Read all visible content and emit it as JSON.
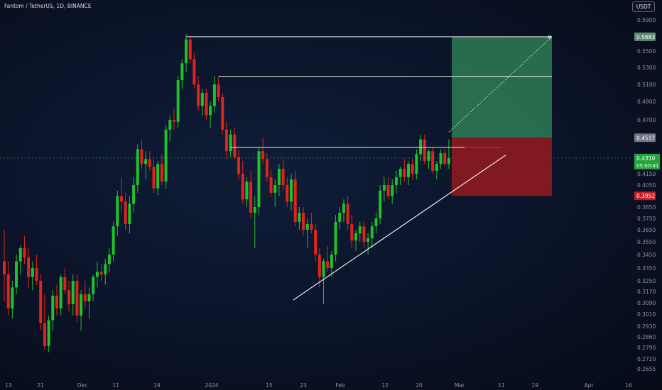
{
  "header": {
    "symbol": "Fantom / TetherUS, 1D, BINANCE",
    "currency": "USDT"
  },
  "colors": {
    "up": "#22c02a",
    "down": "#e0241a",
    "profit_zone": "#2e7d55",
    "loss_zone": "#8e1a20",
    "axis_text": "#8a93a6"
  },
  "chart_data": {
    "type": "candlestick",
    "timeframe": "1D",
    "y_ticks": [
      "0.5900",
      "0.5500",
      "0.5300",
      "0.5100",
      "0.4900",
      "0.4700",
      "0.4150",
      "0.4050",
      "0.3850",
      "0.3750",
      "0.3650",
      "0.3550",
      "0.3450",
      "0.3350",
      "0.3250",
      "0.3170",
      "0.3090",
      "0.3010",
      "0.2930",
      "0.2860",
      "0.2790",
      "0.2720",
      "0.2655"
    ],
    "x_ticks": [
      "13",
      "21",
      "Dec",
      "11",
      "19",
      "2024",
      "15",
      "23",
      "Feb",
      "12",
      "20",
      "Mar",
      "11",
      "19",
      "Apr",
      "16"
    ],
    "price_labels": {
      "target": "0.5683",
      "entry": "0.4517",
      "current": "0.4310",
      "countdown": "05:00:41",
      "stop": "0.3952"
    },
    "position": {
      "entry": 0.4517,
      "target": 0.5683,
      "stop": 0.3952
    },
    "candles": [
      [
        0.34,
        0.365,
        0.31,
        0.33
      ],
      [
        0.33,
        0.34,
        0.3,
        0.305
      ],
      [
        0.305,
        0.325,
        0.298,
        0.32
      ],
      [
        0.32,
        0.345,
        0.315,
        0.34
      ],
      [
        0.34,
        0.352,
        0.33,
        0.35
      ],
      [
        0.35,
        0.36,
        0.338,
        0.343
      ],
      [
        0.343,
        0.35,
        0.32,
        0.328
      ],
      [
        0.328,
        0.34,
        0.318,
        0.335
      ],
      [
        0.335,
        0.345,
        0.322,
        0.325
      ],
      [
        0.325,
        0.33,
        0.29,
        0.295
      ],
      [
        0.295,
        0.315,
        0.278,
        0.28
      ],
      [
        0.28,
        0.3,
        0.276,
        0.297
      ],
      [
        0.297,
        0.318,
        0.29,
        0.314
      ],
      [
        0.314,
        0.322,
        0.3,
        0.305
      ],
      [
        0.305,
        0.33,
        0.3,
        0.328
      ],
      [
        0.328,
        0.335,
        0.315,
        0.318
      ],
      [
        0.318,
        0.325,
        0.303,
        0.308
      ],
      [
        0.308,
        0.33,
        0.3,
        0.325
      ],
      [
        0.325,
        0.33,
        0.296,
        0.3
      ],
      [
        0.3,
        0.318,
        0.29,
        0.315
      ],
      [
        0.315,
        0.325,
        0.305,
        0.31
      ],
      [
        0.31,
        0.32,
        0.298,
        0.315
      ],
      [
        0.315,
        0.33,
        0.31,
        0.328
      ],
      [
        0.328,
        0.34,
        0.32,
        0.332
      ],
      [
        0.332,
        0.338,
        0.325,
        0.33
      ],
      [
        0.33,
        0.342,
        0.322,
        0.338
      ],
      [
        0.338,
        0.35,
        0.332,
        0.345
      ],
      [
        0.345,
        0.372,
        0.34,
        0.368
      ],
      [
        0.368,
        0.4,
        0.36,
        0.395
      ],
      [
        0.395,
        0.412,
        0.38,
        0.39
      ],
      [
        0.39,
        0.398,
        0.365,
        0.37
      ],
      [
        0.37,
        0.395,
        0.362,
        0.388
      ],
      [
        0.388,
        0.412,
        0.38,
        0.405
      ],
      [
        0.405,
        0.445,
        0.398,
        0.44
      ],
      [
        0.44,
        0.45,
        0.42,
        0.425
      ],
      [
        0.425,
        0.438,
        0.41,
        0.43
      ],
      [
        0.43,
        0.438,
        0.418,
        0.422
      ],
      [
        0.422,
        0.43,
        0.398,
        0.402
      ],
      [
        0.402,
        0.428,
        0.396,
        0.425
      ],
      [
        0.425,
        0.435,
        0.405,
        0.408
      ],
      [
        0.408,
        0.465,
        0.402,
        0.46
      ],
      [
        0.46,
        0.475,
        0.448,
        0.47
      ],
      [
        0.47,
        0.482,
        0.46,
        0.468
      ],
      [
        0.468,
        0.52,
        0.462,
        0.515
      ],
      [
        0.515,
        0.54,
        0.505,
        0.535
      ],
      [
        0.535,
        0.572,
        0.525,
        0.565
      ],
      [
        0.565,
        0.57,
        0.535,
        0.54
      ],
      [
        0.54,
        0.548,
        0.505,
        0.51
      ],
      [
        0.51,
        0.52,
        0.48,
        0.485
      ],
      [
        0.485,
        0.505,
        0.475,
        0.5
      ],
      [
        0.5,
        0.505,
        0.47,
        0.475
      ],
      [
        0.475,
        0.49,
        0.462,
        0.485
      ],
      [
        0.485,
        0.52,
        0.478,
        0.51
      ],
      [
        0.51,
        0.518,
        0.49,
        0.495
      ],
      [
        0.495,
        0.5,
        0.455,
        0.46
      ],
      [
        0.46,
        0.468,
        0.43,
        0.438
      ],
      [
        0.438,
        0.46,
        0.432,
        0.455
      ],
      [
        0.455,
        0.462,
        0.43,
        0.432
      ],
      [
        0.432,
        0.44,
        0.41,
        0.415
      ],
      [
        0.415,
        0.428,
        0.388,
        0.392
      ],
      [
        0.392,
        0.412,
        0.385,
        0.408
      ],
      [
        0.408,
        0.418,
        0.375,
        0.38
      ],
      [
        0.38,
        0.395,
        0.35,
        0.385
      ],
      [
        0.385,
        0.442,
        0.378,
        0.438
      ],
      [
        0.438,
        0.452,
        0.425,
        0.43
      ],
      [
        0.43,
        0.436,
        0.408,
        0.412
      ],
      [
        0.412,
        0.42,
        0.395,
        0.398
      ],
      [
        0.398,
        0.41,
        0.385,
        0.405
      ],
      [
        0.405,
        0.425,
        0.395,
        0.42
      ],
      [
        0.42,
        0.43,
        0.4,
        0.405
      ],
      [
        0.405,
        0.412,
        0.385,
        0.39
      ],
      [
        0.39,
        0.415,
        0.382,
        0.41
      ],
      [
        0.41,
        0.418,
        0.368,
        0.372
      ],
      [
        0.372,
        0.385,
        0.365,
        0.38
      ],
      [
        0.38,
        0.385,
        0.36,
        0.365
      ],
      [
        0.365,
        0.375,
        0.35,
        0.37
      ],
      [
        0.37,
        0.38,
        0.362,
        0.365
      ],
      [
        0.365,
        0.37,
        0.34,
        0.345
      ],
      [
        0.345,
        0.35,
        0.32,
        0.328
      ],
      [
        0.328,
        0.342,
        0.308,
        0.34
      ],
      [
        0.34,
        0.352,
        0.332,
        0.335
      ],
      [
        0.335,
        0.348,
        0.328,
        0.345
      ],
      [
        0.345,
        0.378,
        0.34,
        0.372
      ],
      [
        0.372,
        0.385,
        0.365,
        0.38
      ],
      [
        0.38,
        0.392,
        0.372,
        0.388
      ],
      [
        0.388,
        0.395,
        0.365,
        0.37
      ],
      [
        0.37,
        0.378,
        0.35,
        0.356
      ],
      [
        0.356,
        0.365,
        0.348,
        0.362
      ],
      [
        0.362,
        0.372,
        0.355,
        0.368
      ],
      [
        0.368,
        0.372,
        0.35,
        0.355
      ],
      [
        0.355,
        0.362,
        0.345,
        0.358
      ],
      [
        0.358,
        0.372,
        0.35,
        0.368
      ],
      [
        0.368,
        0.38,
        0.362,
        0.375
      ],
      [
        0.375,
        0.405,
        0.37,
        0.4
      ],
      [
        0.4,
        0.412,
        0.39,
        0.405
      ],
      [
        0.405,
        0.412,
        0.392,
        0.395
      ],
      [
        0.395,
        0.41,
        0.388,
        0.405
      ],
      [
        0.405,
        0.418,
        0.398,
        0.412
      ],
      [
        0.412,
        0.422,
        0.405,
        0.42
      ],
      [
        0.42,
        0.43,
        0.408,
        0.412
      ],
      [
        0.412,
        0.428,
        0.405,
        0.425
      ],
      [
        0.425,
        0.43,
        0.41,
        0.415
      ],
      [
        0.415,
        0.44,
        0.41,
        0.435
      ],
      [
        0.435,
        0.455,
        0.428,
        0.45
      ],
      [
        0.45,
        0.455,
        0.425,
        0.428
      ],
      [
        0.428,
        0.44,
        0.42,
        0.438
      ],
      [
        0.438,
        0.442,
        0.415,
        0.418
      ],
      [
        0.418,
        0.428,
        0.41,
        0.425
      ],
      [
        0.425,
        0.44,
        0.42,
        0.436
      ],
      [
        0.436,
        0.44,
        0.422,
        0.425
      ],
      [
        0.425,
        0.45,
        0.42,
        0.431
      ]
    ]
  }
}
